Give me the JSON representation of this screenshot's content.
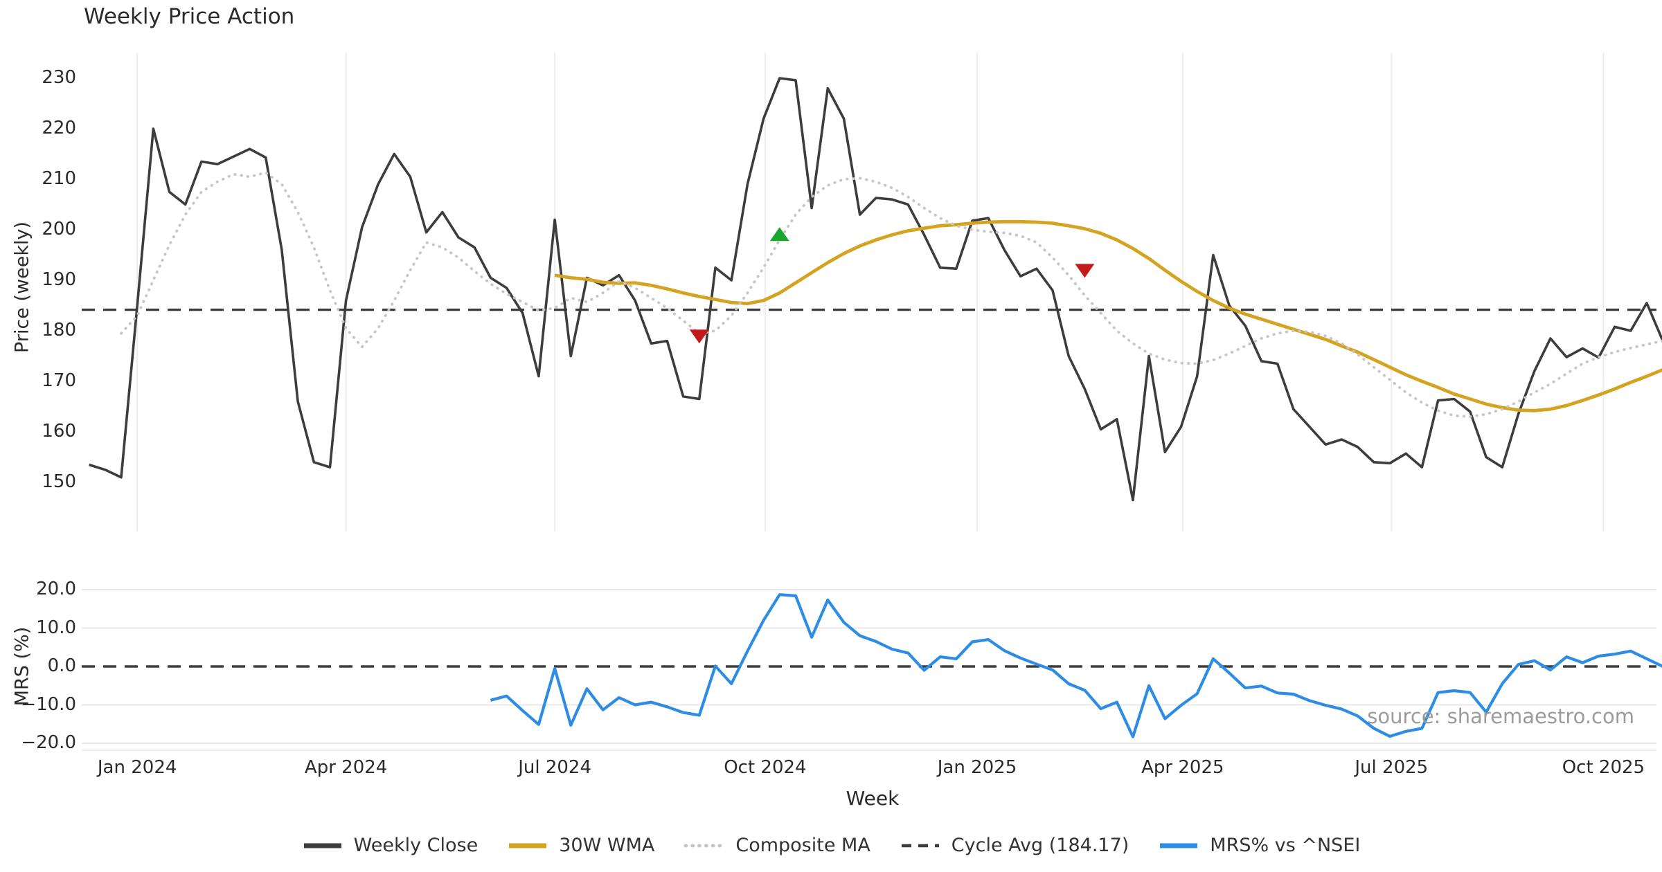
{
  "title": "Weekly Price Action",
  "watermark": "source: sharemaestro.com",
  "chart_data": {
    "type": "line",
    "layout": "two stacked panels sharing x axis, grid on, legend bottom center",
    "x_axis": {
      "label": "Week",
      "unit": "week_index",
      "ticks": [
        {
          "label": "Jan 2024",
          "week": 3.0
        },
        {
          "label": "Apr 2024",
          "week": 16.0
        },
        {
          "label": "Jul 2024",
          "week": 29.0
        },
        {
          "label": "Oct 2024",
          "week": 42.1
        },
        {
          "label": "Jan 2025",
          "week": 55.3
        },
        {
          "label": "Apr 2025",
          "week": 68.1
        },
        {
          "label": "Jul 2025",
          "week": 81.1
        },
        {
          "label": "Oct 2025",
          "week": 94.3
        }
      ]
    },
    "panels": [
      {
        "name": "price",
        "ylabel": "Price (weekly)",
        "ylim": [
          140,
          234.5
        ],
        "grid": "vertical",
        "y_ticks": [
          {
            "label": "230",
            "value": 230
          },
          {
            "label": "220",
            "value": 220
          },
          {
            "label": "210",
            "value": 210
          },
          {
            "label": "200",
            "value": 200
          },
          {
            "label": "190",
            "value": 190
          },
          {
            "label": "180",
            "value": 180
          },
          {
            "label": "170",
            "value": 170
          },
          {
            "label": "160",
            "value": 160
          },
          {
            "label": "150",
            "value": 150
          }
        ]
      },
      {
        "name": "mrs",
        "ylabel": "MRS (%)",
        "ylim": [
          -22,
          21.5
        ],
        "grid": "horizontal",
        "gridline_values": [
          20,
          10,
          -10,
          -20
        ],
        "y_ticks": [
          {
            "label": "20.0",
            "value": 20
          },
          {
            "label": "10.0",
            "value": 10
          },
          {
            "label": "0.0",
            "value": 0
          },
          {
            "label": "−10.0",
            "value": -10
          },
          {
            "label": "−20.0",
            "value": -20
          }
        ]
      }
    ],
    "reference_lines": [
      {
        "panel": 0,
        "value": 184.17,
        "name": "Cycle Avg (184.17)",
        "style": "dashed",
        "color": "#3d3d3d"
      },
      {
        "panel": 1,
        "value": 0,
        "name": "zero line",
        "style": "dashed",
        "color": "#3d3d3d"
      }
    ],
    "series": [
      {
        "name": "Weekly Close",
        "panel": 0,
        "color": "#3d3d3d",
        "width": 3.6,
        "style": "solid",
        "start_week": 0,
        "values": [
          153.5,
          152.5,
          151,
          185,
          220,
          207.5,
          205,
          213.5,
          213,
          214.5,
          216,
          214.3,
          196,
          166,
          154,
          153,
          186,
          200.5,
          209,
          215,
          210.5,
          199.5,
          203.5,
          198.5,
          196.5,
          190.5,
          188.5,
          183.5,
          171,
          202,
          175,
          190.5,
          189,
          191,
          186,
          177.5,
          178,
          167,
          166.5,
          192.5,
          190,
          209,
          222,
          230,
          229.6,
          204.3,
          228,
          222,
          203,
          206.3,
          206,
          205,
          199,
          192.5,
          192.3,
          201.8,
          202.3,
          196,
          190.8,
          192.3,
          188,
          175,
          168.5,
          160.5,
          162.5,
          146.5,
          175,
          156,
          161,
          171,
          195,
          185,
          181,
          174,
          173.5,
          164.5,
          161,
          157.5,
          158.5,
          157,
          154,
          153.8,
          155.7,
          153,
          166.2,
          166.5,
          164,
          155,
          153,
          163.5,
          172,
          178.5,
          174.8,
          176.5,
          174.7,
          180.8,
          180,
          185.5,
          178
        ]
      },
      {
        "name": "30W WMA",
        "panel": 0,
        "color": "#d4a320",
        "width": 4.8,
        "style": "solid",
        "start_week": 29,
        "values": [
          191,
          190.5,
          190.2,
          189.6,
          189.4,
          189.5,
          189,
          188.3,
          187.5,
          186.8,
          186.2,
          185.6,
          185.4,
          186,
          187.5,
          189.5,
          191.5,
          193.5,
          195.3,
          196.8,
          198,
          199,
          199.8,
          200.3,
          200.8,
          201,
          201.3,
          201.5,
          201.6,
          201.6,
          201.5,
          201.3,
          200.8,
          200.2,
          199.3,
          198,
          196.3,
          194.3,
          192,
          189.8,
          187.8,
          186,
          184.5,
          183.3,
          182.3,
          181.3,
          180.3,
          179.3,
          178.3,
          177,
          175.8,
          174.3,
          172.8,
          171.3,
          170,
          168.8,
          167.5,
          166.5,
          165.5,
          164.8,
          164.3,
          164.2,
          164.5,
          165.2,
          166.2,
          167.3,
          168.5,
          169.8,
          171,
          172.3
        ]
      },
      {
        "name": "Composite MA",
        "panel": 0,
        "color": "#c6c6c6",
        "width": 3.8,
        "style": "dotted",
        "start_week": 2,
        "values": [
          179.5,
          183,
          190,
          197,
          203,
          207.5,
          209.5,
          211,
          210.5,
          211.3,
          209,
          203.5,
          196.5,
          188,
          180.5,
          176.8,
          180.5,
          186,
          192,
          197.5,
          196.5,
          194.5,
          191.8,
          189.3,
          187.3,
          185.7,
          184,
          184.5,
          186.5,
          185.7,
          187.5,
          189.8,
          188.5,
          186.5,
          184.5,
          182,
          179.5,
          180,
          183,
          187.5,
          192.5,
          198,
          203,
          206.5,
          208.8,
          210,
          210.2,
          209.5,
          208.3,
          206.5,
          204.3,
          202.3,
          200.8,
          200,
          199.6,
          199.4,
          198.8,
          197.5,
          194.5,
          191,
          187,
          183.5,
          180,
          177.5,
          175.5,
          174.3,
          173.6,
          173.5,
          174.2,
          175.5,
          177,
          178.5,
          179.5,
          180,
          179.8,
          179,
          177.5,
          175.3,
          172.8,
          170.3,
          167.8,
          165.8,
          164.2,
          163.2,
          163,
          163.5,
          164.5,
          166,
          167.8,
          169.5,
          171.5,
          173.5,
          174.8,
          175.8,
          176.6,
          177.3,
          178
        ]
      },
      {
        "name": "MRS% vs ^NSEI",
        "panel": 1,
        "color": "#2d8de4",
        "width": 4.2,
        "style": "solid",
        "start_week": 25,
        "values": [
          -8.8,
          -7.7,
          -11.5,
          -15.1,
          -0.5,
          -15.3,
          -5.8,
          -11.3,
          -8.1,
          -10,
          -9.3,
          -10.5,
          -12,
          -12.7,
          0.1,
          -4.5,
          4,
          12,
          18.7,
          18.4,
          7.6,
          17.3,
          11.5,
          8,
          6.5,
          4.5,
          3.5,
          -1,
          2.5,
          2,
          6.4,
          7,
          4.1,
          2.2,
          0.6,
          -0.9,
          -4.5,
          -6.2,
          -11,
          -9.3,
          -18.3,
          -5,
          -13.6,
          -10.1,
          -7.1,
          2,
          -1.7,
          -5.6,
          -5.1,
          -6.9,
          -7.2,
          -8.9,
          -10.1,
          -11.1,
          -12.9,
          -16.1,
          -18.2,
          -16.9,
          -16.1,
          -6.8,
          -6.3,
          -6.8,
          -11.9,
          -4.5,
          0.5,
          1.5,
          -0.9,
          2.5,
          1,
          2.7,
          3.2,
          4,
          2,
          0
        ]
      }
    ],
    "markers": [
      {
        "shape": "triangle-down",
        "meaning": "sell-signal",
        "color": "#c51a1a",
        "panel": 0,
        "week": 38,
        "value": 179
      },
      {
        "shape": "triangle-up",
        "meaning": "buy-signal",
        "color": "#18a62c",
        "panel": 0,
        "week": 43,
        "value": 199
      },
      {
        "shape": "triangle-down",
        "meaning": "sell-signal",
        "color": "#c51a1a",
        "panel": 0,
        "week": 62,
        "value": 192
      }
    ],
    "legend": [
      {
        "label": "Weekly Close",
        "swatch": "solid",
        "color": "#3d3d3d"
      },
      {
        "label": "30W WMA",
        "swatch": "solid",
        "color": "#d4a320"
      },
      {
        "label": "Composite MA",
        "swatch": "dotted",
        "color": "#c6c6c6"
      },
      {
        "label": "Cycle Avg (184.17)",
        "swatch": "dashed",
        "color": "#3d3d3d"
      },
      {
        "label": "MRS% vs ^NSEI",
        "swatch": "solid",
        "color": "#2d8de4"
      }
    ]
  }
}
